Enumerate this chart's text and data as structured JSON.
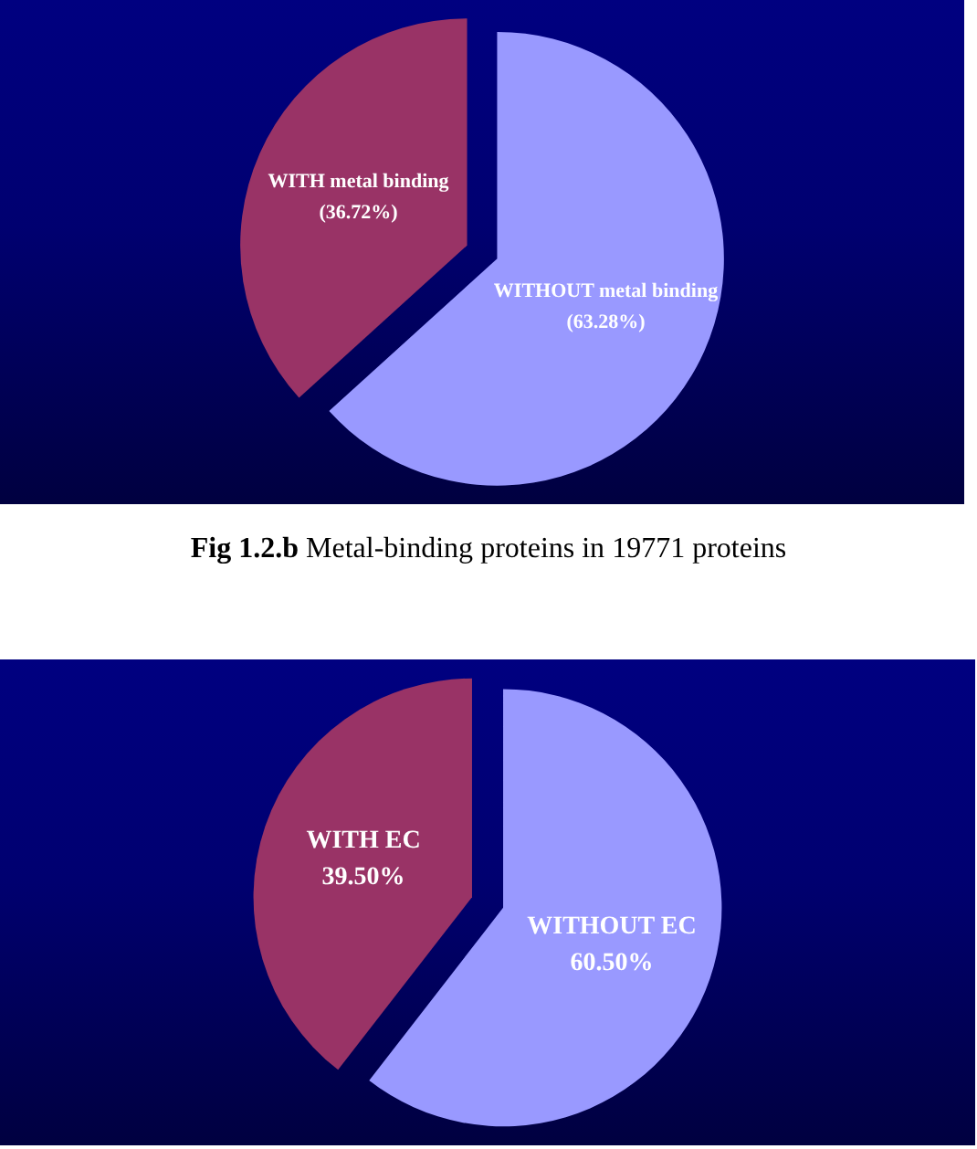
{
  "chart_data": [
    {
      "type": "pie",
      "categories": [
        "WITH metal binding",
        "WITHOUT metal binding"
      ],
      "values": [
        36.72,
        63.28
      ],
      "colors": [
        "#993366",
        "#9999ff"
      ],
      "value_labels": [
        "(36.72%)",
        "(63.28%)"
      ],
      "annotations": [
        "Fig 1.2.b Metal-binding proteins in 19771 proteins"
      ]
    },
    {
      "type": "pie",
      "categories": [
        "WITH EC",
        "WITHOUT EC"
      ],
      "values": [
        39.5,
        60.5
      ],
      "colors": [
        "#993366",
        "#9999ff"
      ],
      "value_labels": [
        "39.50%",
        "60.50%"
      ]
    }
  ]
}
